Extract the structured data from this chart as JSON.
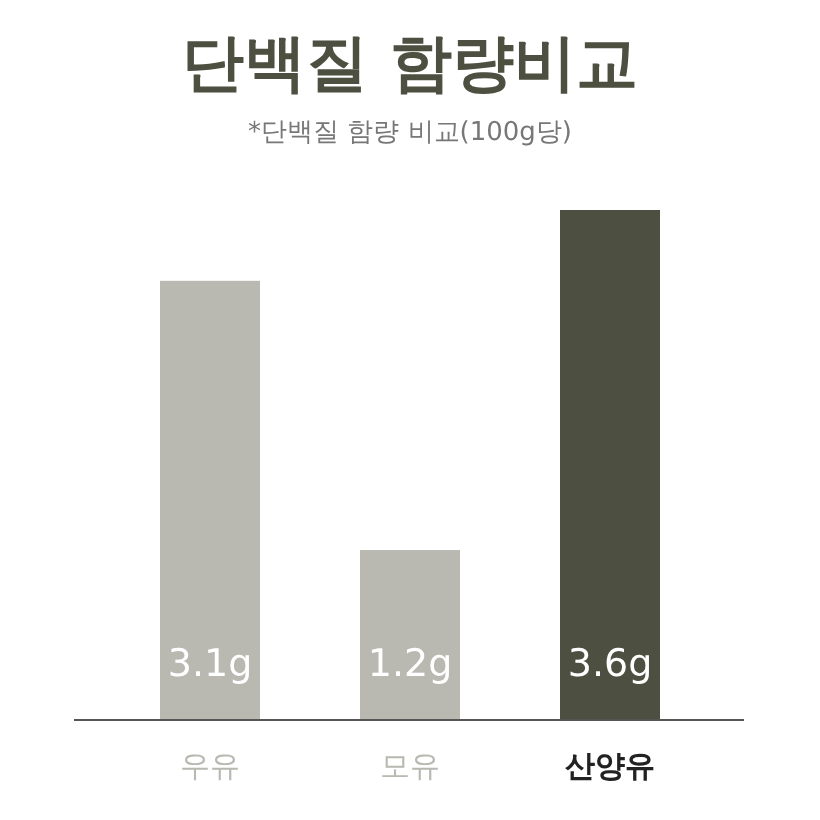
{
  "chart_data": {
    "type": "bar",
    "title": "단백질 함량비교",
    "subtitle": "*단백질 함량 비교(100g당)",
    "categories": [
      "우유",
      "모유",
      "산양유"
    ],
    "values": [
      3.1,
      1.2,
      3.6
    ],
    "value_labels": [
      "3.1g",
      "1.2g",
      "3.6g"
    ],
    "colors": [
      "#b9b9b1",
      "#b9b9b1",
      "#4d5040"
    ],
    "tick_labels": "x"
  }
}
